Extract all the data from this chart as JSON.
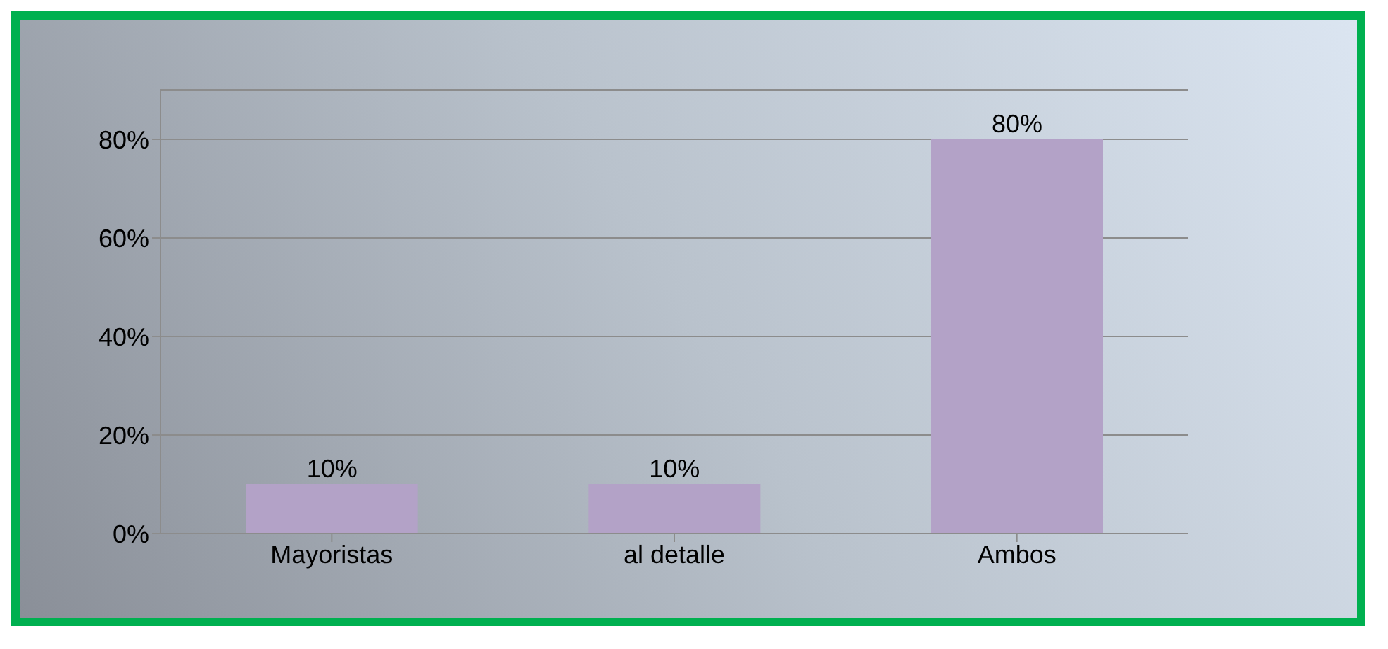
{
  "chart_data": {
    "type": "bar",
    "categories": [
      "Mayoristas",
      "al detalle",
      "Ambos"
    ],
    "values": [
      10,
      10,
      80
    ],
    "color": "#b3a2c7",
    "value_labels": [
      "10%",
      "10%",
      "80%"
    ],
    "ylim": [
      0,
      90
    ],
    "yticks": [
      {
        "value": 0,
        "label": "0%"
      },
      {
        "value": 20,
        "label": "20%"
      },
      {
        "value": 40,
        "label": "40%"
      },
      {
        "value": 60,
        "label": "60%"
      },
      {
        "value": 80,
        "label": "80%"
      }
    ],
    "grid": "y"
  }
}
